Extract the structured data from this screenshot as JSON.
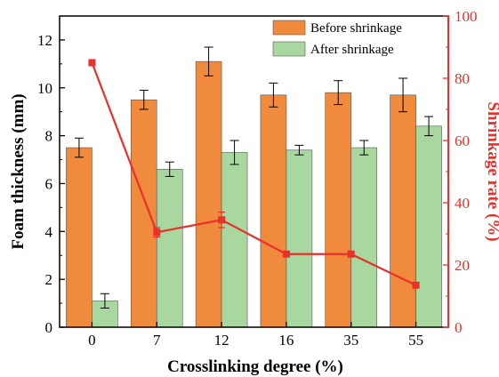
{
  "chart_data": {
    "type": "bar",
    "title": "",
    "xlabel": "Crosslinking degree (%)",
    "ylabel": "Foam thickness (mm)",
    "y2label": "Shrinkage rate (%)",
    "categories": [
      "0",
      "7",
      "12",
      "16",
      "35",
      "55"
    ],
    "ylim": [
      0,
      13
    ],
    "yticks": [
      0,
      2,
      4,
      6,
      8,
      10,
      12
    ],
    "y2lim": [
      0,
      100
    ],
    "y2ticks": [
      0,
      20,
      40,
      60,
      80,
      100
    ],
    "legend_position": "top-right",
    "grid": false,
    "series": [
      {
        "name": "Before shrinkage",
        "type": "bar",
        "axis": "left",
        "color": "#F08A3C",
        "values": [
          7.5,
          9.5,
          11.1,
          9.7,
          9.8,
          9.7
        ],
        "errors": [
          0.4,
          0.4,
          0.6,
          0.5,
          0.5,
          0.7
        ]
      },
      {
        "name": "After shrinkage",
        "type": "bar",
        "axis": "left",
        "color": "#A8D8A0",
        "values": [
          1.1,
          6.6,
          7.3,
          7.4,
          7.5,
          8.4
        ],
        "errors": [
          0.3,
          0.3,
          0.5,
          0.2,
          0.3,
          0.4
        ]
      },
      {
        "name": "",
        "type": "line",
        "axis": "right",
        "color": "#E8312A",
        "values": [
          85,
          30.5,
          34.5,
          23.5,
          23.5,
          13.5
        ],
        "errors": [
          0,
          1.5,
          2.5,
          0,
          0,
          0
        ]
      }
    ]
  }
}
